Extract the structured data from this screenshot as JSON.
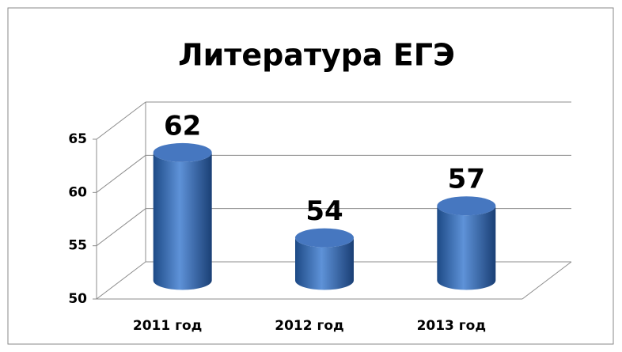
{
  "chart_data": {
    "type": "bar",
    "title": "Литература ЕГЭ",
    "categories": [
      "2011 год",
      "2012 год",
      "2013 год"
    ],
    "values": [
      62,
      54,
      57
    ],
    "color": "#3f6fb8",
    "ylim": [
      50,
      65
    ],
    "yticks": [
      50,
      55,
      60,
      65
    ],
    "grid": true
  }
}
